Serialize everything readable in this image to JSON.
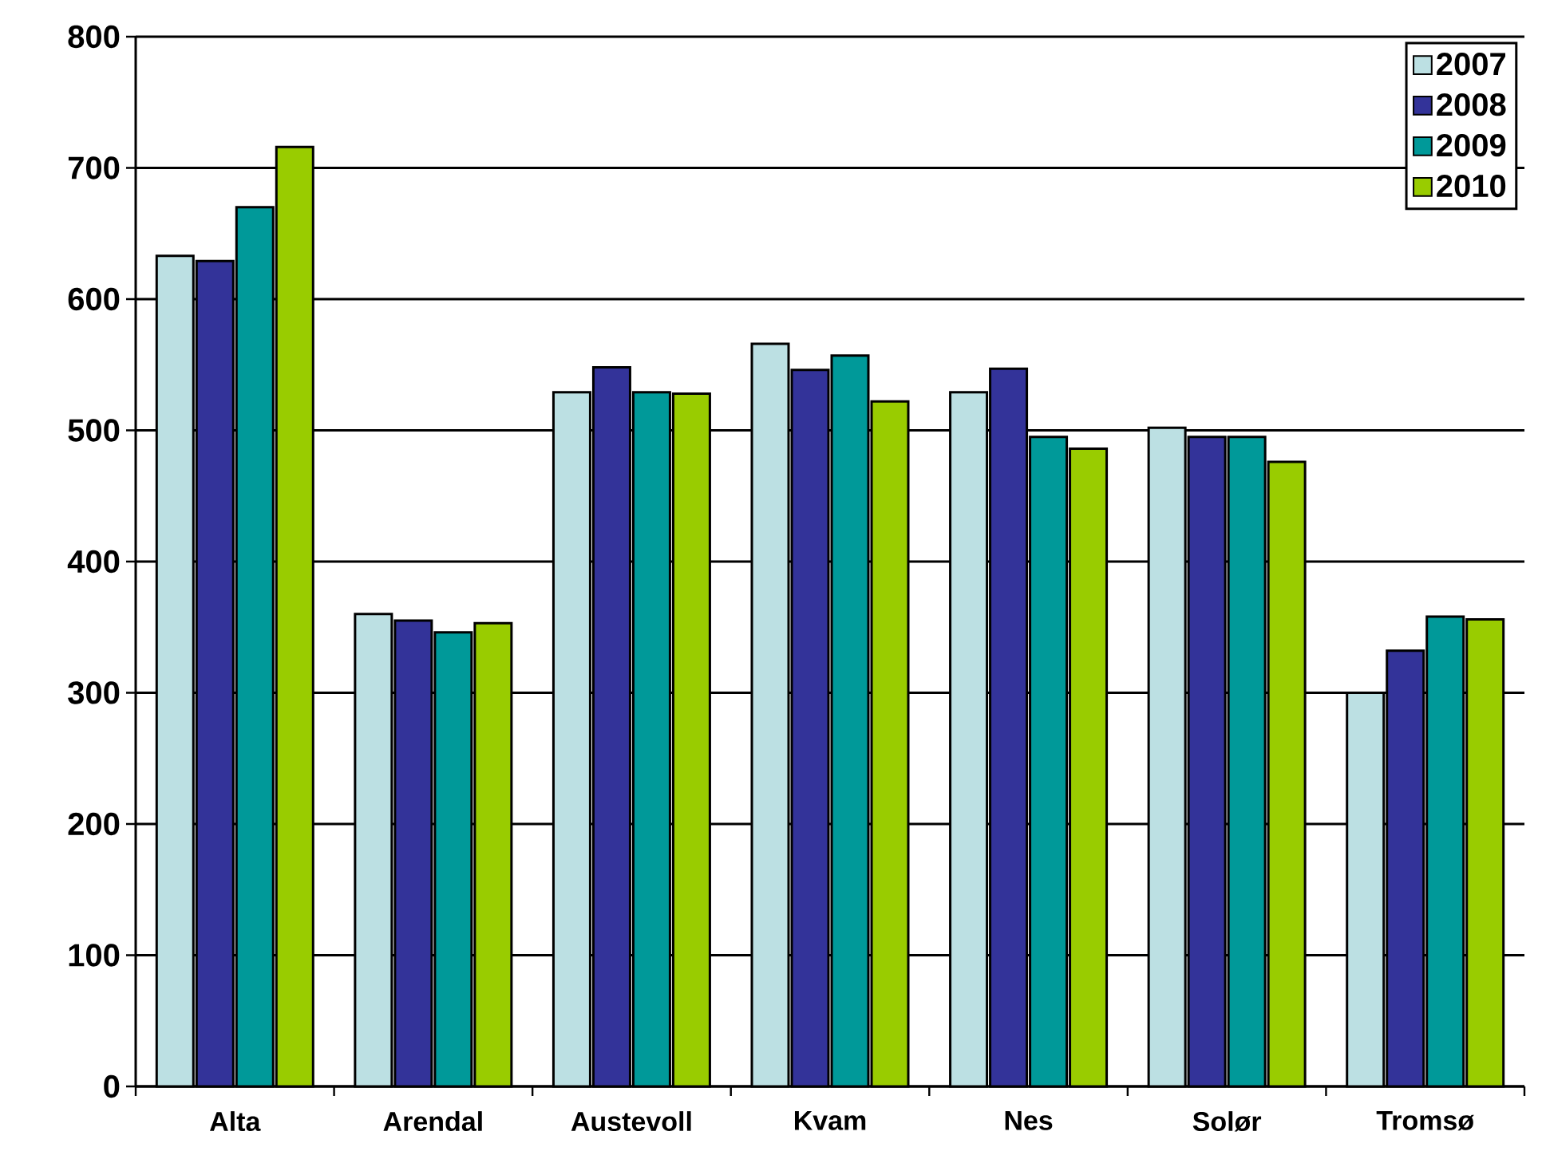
{
  "chart_data": {
    "type": "bar",
    "categories": [
      "Alta",
      "Arendal",
      "Austevoll",
      "Kvam",
      "Nes",
      "Solør",
      "Tromsø"
    ],
    "series": [
      {
        "name": "2007",
        "color": "#bce0e3",
        "values": [
          633,
          360,
          529,
          566,
          529,
          502,
          300
        ]
      },
      {
        "name": "2008",
        "color": "#333399",
        "values": [
          629,
          355,
          548,
          546,
          547,
          495,
          332
        ]
      },
      {
        "name": "2009",
        "color": "#009999",
        "values": [
          670,
          346,
          529,
          557,
          495,
          495,
          358
        ]
      },
      {
        "name": "2010",
        "color": "#99cc00",
        "values": [
          716,
          353,
          528,
          522,
          486,
          476,
          356
        ]
      }
    ],
    "ylim": [
      0,
      800
    ],
    "yticks": [
      0,
      100,
      200,
      300,
      400,
      500,
      600,
      700,
      800
    ],
    "grid": "y",
    "legend": "top right"
  }
}
